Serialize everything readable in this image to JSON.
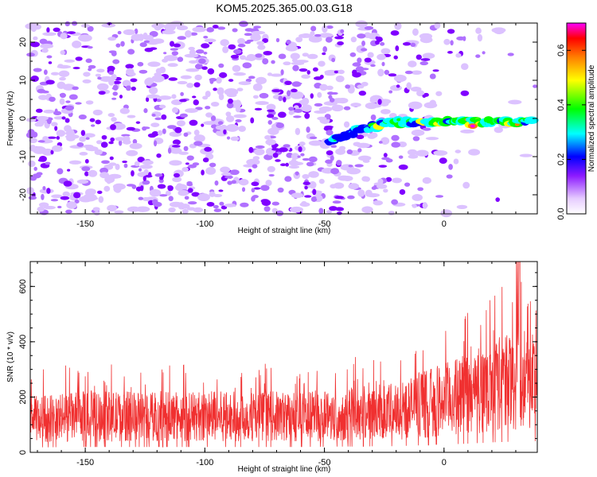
{
  "title": "KOM5.2025.365.00.03.G18",
  "chart_data": [
    {
      "type": "heatmap",
      "name": "spectrogram",
      "xlabel": "Height of straight line (km)",
      "ylabel": "Frequency (Hz)",
      "xlim": [
        -173,
        39
      ],
      "ylim": [
        -25,
        25
      ],
      "xticks": [
        -150,
        -100,
        -50,
        0
      ],
      "yticks": [
        -20,
        -10,
        0,
        10,
        20
      ],
      "colorbar": {
        "label": "Normalized spectral amplitude",
        "range": [
          0.0,
          0.7
        ],
        "ticks": [
          "0.0",
          "0.2",
          "0.4",
          "0.6"
        ],
        "tick_values": [
          0.0,
          0.2,
          0.4,
          0.6
        ],
        "colormap": [
          "#ffffff",
          "#d9b3ff",
          "#8c1aff",
          "#0000ff",
          "#00ffff",
          "#00ff00",
          "#ffff00",
          "#ff8000",
          "#ff0000",
          "#ff00ff"
        ]
      },
      "signal_track": {
        "description_points_x": [
          -40,
          -30,
          -20,
          -10,
          0,
          10,
          20,
          30,
          35
        ],
        "description_points_y": [
          -4,
          -2,
          -1,
          -1,
          -1,
          -1,
          -1,
          -1,
          -1
        ]
      }
    },
    {
      "type": "line",
      "name": "snr",
      "xlabel": "Height of straight line (km)",
      "ylabel": "SNR (10 * v/v)",
      "xlim": [
        -173,
        39
      ],
      "ylim": [
        0,
        690
      ],
      "xticks": [
        -150,
        -100,
        -50,
        0
      ],
      "yticks": [
        0,
        200,
        400,
        600
      ],
      "color": "#f03030",
      "trend_x": [
        -173,
        -150,
        -100,
        -60,
        -40,
        -20,
        0,
        10,
        20,
        30,
        39
      ],
      "trend_y": [
        120,
        130,
        130,
        130,
        140,
        150,
        190,
        210,
        240,
        260,
        270
      ]
    }
  ]
}
